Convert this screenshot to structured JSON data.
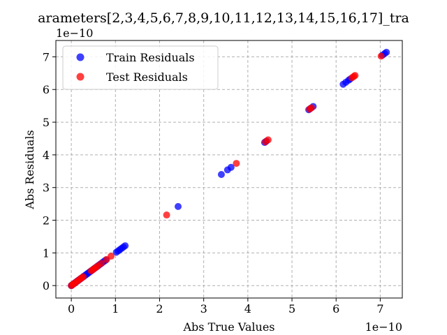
{
  "chart_data": {
    "type": "scatter",
    "title": "arameters[2,3,4,5,6,7,8,9,10,11,12,13,14,15,16,17]_tra",
    "xlabel": "Abs True Values",
    "ylabel": "Abs Residuals",
    "x_scale_label": "1e−10",
    "y_scale_label": "1e−10",
    "xlim": [
      -0.35,
      7.5
    ],
    "ylim": [
      -0.38,
      7.5
    ],
    "x_ticks": [
      0,
      1,
      2,
      3,
      4,
      5,
      6,
      7
    ],
    "y_ticks": [
      0,
      1,
      2,
      3,
      4,
      5,
      6,
      7
    ],
    "grid": true,
    "legend_position": "top-left",
    "series": [
      {
        "name": "Train Residuals",
        "color": "#0000ff",
        "points": [
          [
            0.0,
            0.0
          ],
          [
            0.02,
            0.02
          ],
          [
            0.04,
            0.04
          ],
          [
            0.06,
            0.06
          ],
          [
            0.08,
            0.08
          ],
          [
            0.1,
            0.1
          ],
          [
            0.12,
            0.12
          ],
          [
            0.14,
            0.14
          ],
          [
            0.16,
            0.16
          ],
          [
            0.18,
            0.18
          ],
          [
            0.2,
            0.2
          ],
          [
            0.22,
            0.22
          ],
          [
            0.25,
            0.25
          ],
          [
            0.28,
            0.28
          ],
          [
            0.31,
            0.31
          ],
          [
            0.34,
            0.34
          ],
          [
            0.37,
            0.37
          ],
          [
            0.4,
            0.4
          ],
          [
            0.43,
            0.43
          ],
          [
            0.46,
            0.46
          ],
          [
            0.5,
            0.5
          ],
          [
            0.54,
            0.54
          ],
          [
            0.58,
            0.58
          ],
          [
            0.62,
            0.62
          ],
          [
            0.66,
            0.66
          ],
          [
            0.7,
            0.7
          ],
          [
            0.74,
            0.74
          ],
          [
            0.78,
            0.78
          ],
          [
            1.02,
            1.02
          ],
          [
            1.06,
            1.06
          ],
          [
            1.1,
            1.1
          ],
          [
            1.14,
            1.14
          ],
          [
            1.18,
            1.18
          ],
          [
            1.22,
            1.22
          ],
          [
            2.42,
            2.42
          ],
          [
            3.4,
            3.4
          ],
          [
            3.54,
            3.54
          ],
          [
            3.62,
            3.62
          ],
          [
            4.38,
            4.38
          ],
          [
            4.42,
            4.42
          ],
          [
            5.38,
            5.38
          ],
          [
            5.42,
            5.42
          ],
          [
            5.48,
            5.48
          ],
          [
            6.16,
            6.16
          ],
          [
            6.22,
            6.22
          ],
          [
            6.28,
            6.28
          ],
          [
            6.32,
            6.32
          ],
          [
            7.05,
            7.05
          ],
          [
            7.1,
            7.1
          ],
          [
            7.14,
            7.14
          ]
        ]
      },
      {
        "name": "Test Residuals",
        "color": "#ff0000",
        "points": [
          [
            0.0,
            0.0
          ],
          [
            0.03,
            0.03
          ],
          [
            0.05,
            0.05
          ],
          [
            0.09,
            0.09
          ],
          [
            0.13,
            0.13
          ],
          [
            0.17,
            0.17
          ],
          [
            0.21,
            0.21
          ],
          [
            0.24,
            0.24
          ],
          [
            0.27,
            0.27
          ],
          [
            0.45,
            0.45
          ],
          [
            0.48,
            0.48
          ],
          [
            0.52,
            0.52
          ],
          [
            0.56,
            0.56
          ],
          [
            0.6,
            0.6
          ],
          [
            0.68,
            0.68
          ],
          [
            0.8,
            0.8
          ],
          [
            0.9,
            0.9
          ],
          [
            2.16,
            2.16
          ],
          [
            3.74,
            3.74
          ],
          [
            4.4,
            4.4
          ],
          [
            4.46,
            4.46
          ],
          [
            5.4,
            5.4
          ],
          [
            5.44,
            5.44
          ],
          [
            6.36,
            6.36
          ],
          [
            6.4,
            6.4
          ],
          [
            6.43,
            6.43
          ],
          [
            7.02,
            7.02
          ]
        ]
      }
    ]
  }
}
